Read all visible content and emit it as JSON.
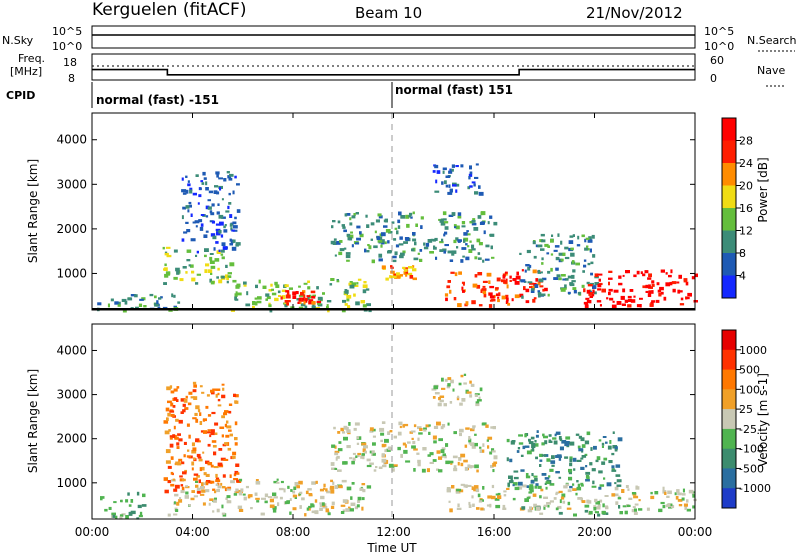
{
  "header": {
    "station": "Kerguelen (fitACF)",
    "beam": "Beam 10",
    "date": "21/Nov/2012"
  },
  "nsky_panel": {
    "left_label": "N.Sky",
    "left_ticks": [
      "10^5",
      "10^0"
    ],
    "right_ticks": [
      "10^5",
      "10^0"
    ],
    "right_label": "N.Search"
  },
  "freq_panel": {
    "left_label_line1": "Freq.",
    "left_label_line2": "[MHz]",
    "left_ticks": [
      "18",
      "8"
    ],
    "right_ticks": [
      "60",
      "0"
    ],
    "right_label": "Nave",
    "freq_segments": [
      {
        "start_h": 0.0,
        "end_h": 3.0,
        "value": 12
      },
      {
        "start_h": 3.0,
        "end_h": 17.0,
        "value": 10
      },
      {
        "start_h": 17.0,
        "end_h": 24.0,
        "value": 12
      }
    ],
    "nave_level": 30
  },
  "cpid_panel": {
    "label": "CPID",
    "segments": [
      {
        "start_h": 0.0,
        "label": "normal (fast) -151"
      },
      {
        "start_h": 12.0,
        "label": "normal (fast) 151"
      }
    ]
  },
  "power_panel": {
    "ylabel": "Slant Range [km]",
    "ticks": [
      "4000",
      "3000",
      "2000",
      "1000"
    ],
    "colorbar_label": "Power [dB]",
    "colorbar_ticks": [
      "28",
      "24",
      "20",
      "16",
      "12",
      "8",
      "4"
    ],
    "colors": [
      "#1428ff",
      "#1e5ab4",
      "#3c8c78",
      "#64be3c",
      "#f0dc14",
      "#ff8c00",
      "#ff1e00",
      "#ff0000"
    ]
  },
  "velocity_panel": {
    "ylabel": "Slant Range [km]",
    "ticks": [
      "4000",
      "3000",
      "2000",
      "1000"
    ],
    "colorbar_label": "Velocity [m s-1]",
    "colorbar_ticks": [
      "1000",
      "500",
      "100",
      "25",
      "-25",
      "-100",
      "-500",
      "-1000"
    ],
    "colors": [
      "#1e3cc8",
      "#2a6ea0",
      "#3c8c6e",
      "#50b450",
      "#c8c8b4",
      "#f0a028",
      "#ff7800",
      "#ff3200",
      "#e60000"
    ]
  },
  "xaxis": {
    "label": "Time UT",
    "ticks": [
      "00:00",
      "04:00",
      "08:00",
      "12:00",
      "16:00",
      "20:00",
      "00:00"
    ]
  },
  "chart_data": {
    "type": "heatmap",
    "title": "Kerguelen (fitACF) Beam 10 21/Nov/2012",
    "xlabel": "Time UT",
    "ylabel": "Slant Range [km]",
    "xlim": [
      0,
      24
    ],
    "ylim": [
      180,
      4600
    ],
    "power_regions": [
      {
        "t0": 0.2,
        "t1": 3.5,
        "r0": 200,
        "r1": 600,
        "level": 2
      },
      {
        "t0": 2.8,
        "t1": 5.5,
        "r0": 800,
        "r1": 1600,
        "level": 3
      },
      {
        "t0": 3.5,
        "t1": 5.8,
        "r0": 1500,
        "r1": 3300,
        "level": 1
      },
      {
        "t0": 5.5,
        "t1": 11.0,
        "r0": 200,
        "r1": 900,
        "level": 3
      },
      {
        "t0": 7.5,
        "t1": 9.0,
        "r0": 350,
        "r1": 650,
        "level": 6
      },
      {
        "t0": 9.5,
        "t1": 16.0,
        "r0": 1300,
        "r1": 2400,
        "level": 2
      },
      {
        "t0": 11.5,
        "t1": 12.8,
        "r0": 900,
        "r1": 1200,
        "level": 5
      },
      {
        "t0": 13.5,
        "t1": 15.5,
        "r0": 2800,
        "r1": 3500,
        "level": 1
      },
      {
        "t0": 14.0,
        "t1": 18.0,
        "r0": 300,
        "r1": 1100,
        "level": 6
      },
      {
        "t0": 17.0,
        "t1": 20.0,
        "r0": 500,
        "r1": 1900,
        "level": 2
      },
      {
        "t0": 19.5,
        "t1": 24.0,
        "r0": 300,
        "r1": 1100,
        "level": 7
      }
    ],
    "velocity_regions": [
      {
        "t0": 2.8,
        "t1": 5.8,
        "r0": 800,
        "r1": 3300,
        "level": 6
      },
      {
        "t0": 3.0,
        "t1": 11.0,
        "r0": 300,
        "r1": 1100,
        "level": 4
      },
      {
        "t0": 9.5,
        "t1": 16.0,
        "r0": 1300,
        "r1": 2400,
        "level": 4
      },
      {
        "t0": 13.5,
        "t1": 15.5,
        "r0": 2800,
        "r1": 3500,
        "level": 4
      },
      {
        "t0": 14.0,
        "t1": 24.0,
        "r0": 400,
        "r1": 1000,
        "level": 4
      },
      {
        "t0": 16.5,
        "t1": 21.0,
        "r0": 900,
        "r1": 2200,
        "level": 2
      },
      {
        "t0": 17.0,
        "t1": 22.0,
        "r0": 300,
        "r1": 500,
        "level": 3
      },
      {
        "t0": 0.3,
        "t1": 2.0,
        "r0": 200,
        "r1": 800,
        "level": 3
      }
    ]
  }
}
